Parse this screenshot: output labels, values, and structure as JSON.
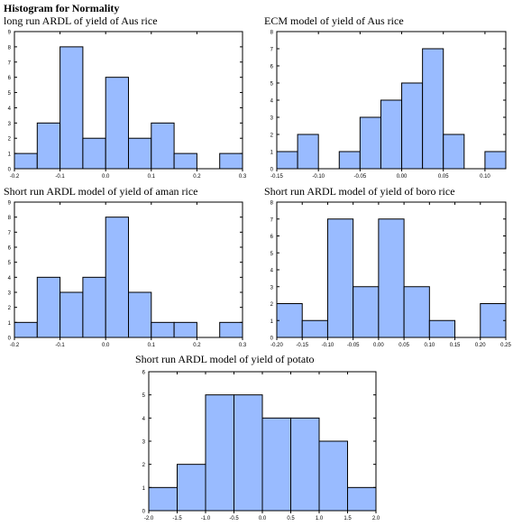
{
  "heading": "Histogram for Normality",
  "chart_data": [
    {
      "type": "bar",
      "title": "long run ARDL of yield of Aus rice",
      "bin_edges": [
        -0.2,
        -0.15,
        -0.1,
        -0.05,
        0.0,
        0.05,
        0.1,
        0.15,
        0.2,
        0.25,
        0.3
      ],
      "values": [
        1,
        3,
        8,
        2,
        6,
        2,
        3,
        1,
        0,
        1
      ],
      "xlim": [
        -0.2,
        0.3
      ],
      "ylim": [
        0,
        9
      ],
      "xticks": [
        -0.2,
        -0.1,
        0.0,
        0.1,
        0.2,
        0.3
      ],
      "xtick_labels": [
        "-0.2",
        "-0.1",
        "0.0",
        "0.1",
        "0.2",
        "0.3"
      ],
      "yticks": [
        0,
        1,
        2,
        3,
        4,
        5,
        6,
        7,
        8,
        9
      ],
      "bar_color": "#99bbff"
    },
    {
      "type": "bar",
      "title": "ECM model of yield of Aus rice",
      "bin_edges": [
        -0.15,
        -0.125,
        -0.1,
        -0.075,
        -0.05,
        -0.025,
        0.0,
        0.025,
        0.05,
        0.075,
        0.1,
        0.125
      ],
      "values": [
        1,
        2,
        0,
        1,
        3,
        4,
        5,
        7,
        2,
        0,
        1
      ],
      "xlim": [
        -0.15,
        0.125
      ],
      "ylim": [
        0,
        8
      ],
      "xticks": [
        -0.15,
        -0.1,
        -0.05,
        0.0,
        0.05,
        0.1
      ],
      "xtick_labels": [
        "-0.15",
        "-0.10",
        "-0.05",
        "0.00",
        "0.05",
        "0.10"
      ],
      "yticks": [
        0,
        1,
        2,
        3,
        4,
        5,
        6,
        7,
        8
      ],
      "bar_color": "#99bbff"
    },
    {
      "type": "bar",
      "title": "Short run ARDL model of yield of aman rice",
      "bin_edges": [
        -0.2,
        -0.15,
        -0.1,
        -0.05,
        0.0,
        0.05,
        0.1,
        0.15,
        0.2,
        0.25,
        0.3
      ],
      "values": [
        1,
        4,
        3,
        4,
        8,
        3,
        1,
        1,
        0,
        1
      ],
      "xlim": [
        -0.2,
        0.3
      ],
      "ylim": [
        0,
        9
      ],
      "xticks": [
        -0.2,
        -0.1,
        0.0,
        0.1,
        0.2,
        0.3
      ],
      "xtick_labels": [
        "-0.2",
        "-0.1",
        "0.0",
        "0.1",
        "0.2",
        "0.3"
      ],
      "yticks": [
        0,
        1,
        2,
        3,
        4,
        5,
        6,
        7,
        8,
        9
      ],
      "bar_color": "#99bbff"
    },
    {
      "type": "bar",
      "title": "Short run ARDL model of yield of boro rice",
      "bin_edges": [
        -0.2,
        -0.15,
        -0.1,
        -0.05,
        0.0,
        0.05,
        0.1,
        0.15,
        0.2,
        0.25
      ],
      "values": [
        2,
        1,
        7,
        3,
        7,
        3,
        1,
        0,
        2
      ],
      "xlim": [
        -0.2,
        0.25
      ],
      "ylim": [
        0,
        8
      ],
      "xticks": [
        -0.2,
        -0.15,
        -0.1,
        -0.05,
        0.0,
        0.05,
        0.1,
        0.15,
        0.2,
        0.25
      ],
      "xtick_labels": [
        "-0.20",
        "-0.15",
        "-0.10",
        "-0.05",
        "0.00",
        "0.05",
        "0.10",
        "0.15",
        "0.20",
        "0.25"
      ],
      "yticks": [
        0,
        1,
        2,
        3,
        4,
        5,
        6,
        7,
        8
      ],
      "bar_color": "#99bbff"
    },
    {
      "type": "bar",
      "title": "Short run ARDL model of yield of potato",
      "bin_edges": [
        -2.0,
        -1.5,
        -1.0,
        -0.5,
        0.0,
        0.5,
        1.0,
        1.5,
        2.0
      ],
      "values": [
        1,
        2,
        5,
        5,
        4,
        4,
        3,
        1
      ],
      "xlim": [
        -2.0,
        2.0
      ],
      "ylim": [
        0,
        6
      ],
      "xticks": [
        -2.0,
        -1.5,
        -1.0,
        -0.5,
        0.0,
        0.5,
        1.0,
        1.5,
        2.0
      ],
      "xtick_labels": [
        "-2.0",
        "-1.5",
        "-1.0",
        "-0.5",
        "0.0",
        "0.5",
        "1.0",
        "1.5",
        "2.0"
      ],
      "yticks": [
        0,
        1,
        2,
        3,
        4,
        5,
        6
      ],
      "bar_color": "#99bbff"
    }
  ]
}
